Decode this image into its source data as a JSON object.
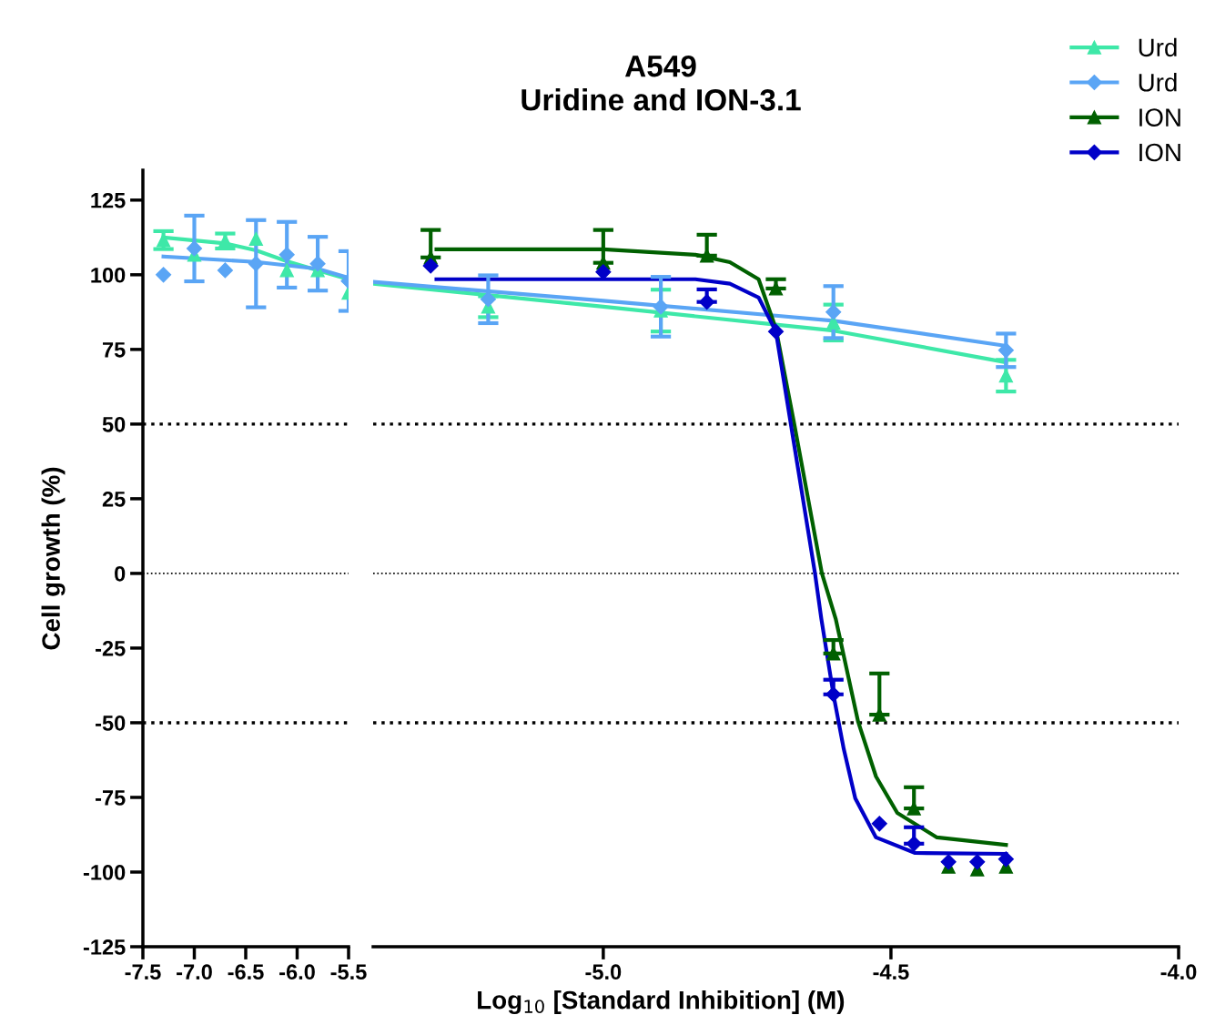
{
  "chart_data": [
    {
      "type": "scatter",
      "ylabel": "Cell growth (%)",
      "xlim": [
        -7.5,
        -5.5
      ],
      "xticks": [
        -7.5,
        {
          "value": -7.0,
          "label": "-7.0"
        },
        -6.5,
        {
          "value": -6.0,
          "label": "-6.0"
        },
        -5.5
      ],
      "ylim": [
        -125,
        135
      ],
      "yticks": [
        -125,
        -100,
        -75,
        -50,
        -25,
        0,
        25,
        50,
        75,
        100,
        125
      ],
      "grid": false,
      "legend": "top right",
      "ref_lines": [
        {
          "axis": "y",
          "value": 50,
          "line_style": "dotted",
          "color": "#000000"
        },
        {
          "axis": "y",
          "value": 0,
          "line_style": "dotted",
          "color": "#000000"
        },
        {
          "axis": "y",
          "value": -50,
          "line_style": "dotted",
          "color": "#000000"
        }
      ],
      "series": [
        {
          "type": "line",
          "color": "#3ee8a8",
          "x": [
            -7.3,
            -6.7,
            -6.4,
            -6.1,
            -5.8,
            -5.5
          ],
          "values": [
            112.5,
            110.5,
            108.2,
            104.5,
            101.5,
            98.5
          ]
        },
        {
          "type": "line",
          "color": "#5aa5f5",
          "x": [
            -7.3,
            -6.4,
            -5.8,
            -5.5
          ],
          "values": [
            106.1,
            104.3,
            102,
            99
          ]
        },
        {
          "name": "Urd",
          "type": "scatter",
          "marker": "triangle",
          "color": "#3ee8a8",
          "x": [
            -7.3,
            -7.0,
            -6.7,
            -6.4,
            -6.1,
            -5.8,
            -5.5
          ],
          "values": [
            111.6,
            106.7,
            111.3,
            112,
            101.5,
            101.5,
            94
          ],
          "errors": [
            3,
            null,
            2.5,
            null,
            null,
            null,
            null
          ]
        },
        {
          "name": "Urd",
          "type": "scatter",
          "marker": "diamond",
          "color": "#5aa5f5",
          "x": [
            -7.3,
            -7.0,
            -6.7,
            -6.4,
            -6.1,
            -5.8,
            -5.5
          ],
          "values": [
            100,
            108.8,
            101.5,
            103.7,
            106.7,
            103.7,
            97.9
          ],
          "errors": [
            null,
            11,
            null,
            14.6,
            11,
            9,
            10
          ]
        }
      ]
    },
    {
      "type": "scatter",
      "title": "A549\nUridine and ION-3.1",
      "xlabel": "Log$_{10}$ [Standard Inhibition] (M)",
      "xlim": [
        -5.4,
        -4.0
      ],
      "xticks": [
        {
          "value": -5.0,
          "label": "-5.0"
        },
        -4.5,
        {
          "value": -4.0,
          "label": "-4.0"
        }
      ],
      "ylim": [
        -125,
        125
      ],
      "yticks": [
        -125,
        -100,
        -75,
        -50,
        -25,
        0,
        25,
        50,
        75,
        100,
        125
      ],
      "tick_labels": "x",
      "grid": false,
      "legend": "top right",
      "ref_lines": [
        {
          "axis": "y",
          "value": 50,
          "line_style": "dotted",
          "color": "#000000"
        },
        {
          "axis": "y",
          "value": 0,
          "line_style": "dotted",
          "color": "#000000"
        },
        {
          "axis": "y",
          "value": -50,
          "line_style": "dotted",
          "color": "#000000"
        }
      ],
      "series": [
        {
          "type": "line",
          "color": "#3ee8a8",
          "x": [
            -5.4,
            -5.0,
            -4.7,
            -4.6,
            -4.3
          ],
          "values": [
            97.0,
            89.3,
            83.3,
            81.3,
            70.7
          ]
        },
        {
          "type": "line",
          "color": "#5aa5f5",
          "x": [
            -5.4,
            -5.0,
            -4.7,
            -4.6,
            -4.3
          ],
          "values": [
            97.6,
            91.3,
            86.3,
            84.6,
            76.2
          ]
        },
        {
          "type": "line",
          "color": "#006000",
          "x": [
            -5.29,
            -5.0,
            -4.84,
            -4.78,
            -4.73,
            -4.7,
            -4.668,
            -4.62,
            -4.596,
            -4.557,
            -4.526,
            -4.489,
            -4.42,
            -4.3
          ],
          "values": [
            108.5,
            108.5,
            106.7,
            104.2,
            98.5,
            82,
            50,
            0,
            -15.2,
            -49.7,
            -68,
            -80.2,
            -88.4,
            -90.9
          ]
        },
        {
          "type": "line",
          "color": "#0000c8",
          "x": [
            -5.29,
            -4.84,
            -4.78,
            -4.73,
            -4.7,
            -4.674,
            -4.632,
            -4.621,
            -4.6,
            -4.582,
            -4.562,
            -4.526,
            -4.458,
            -4.3
          ],
          "values": [
            98.5,
            98.5,
            97,
            92.4,
            81,
            50,
            0,
            -15.2,
            -40.5,
            -58.8,
            -75.3,
            -88.4,
            -93.6,
            -93.9
          ]
        },
        {
          "type": "scatter",
          "marker": "triangle",
          "color": "#3ee8a8",
          "x": [
            -5.2,
            -4.9,
            -4.6,
            -4.3
          ],
          "values": [
            89.3,
            88,
            84,
            66.2
          ],
          "errors": [
            3.5,
            7,
            6,
            5.3
          ]
        },
        {
          "type": "scatter",
          "marker": "diamond",
          "color": "#5aa5f5",
          "x": [
            -5.2,
            -4.9,
            -4.6,
            -4.3
          ],
          "values": [
            91.8,
            89.3,
            87.5,
            74.7
          ],
          "errors": [
            8,
            10,
            8.7,
            5.6
          ]
        },
        {
          "name": "ION",
          "type": "scatter",
          "marker": "triangle",
          "color": "#006000",
          "x": [
            -5.3,
            -5.0,
            -4.82,
            -4.7,
            -4.6,
            -4.52,
            -4.46,
            -4.4,
            -4.35,
            -4.3
          ],
          "values": [
            105.8,
            104,
            106.4,
            95.4,
            -26.8,
            -47.3,
            -78.7,
            -98.2,
            -99.1,
            -98.2
          ],
          "errors": [
            [
              105.8,
              115
            ],
            [
              104,
              115
            ],
            [
              106.4,
              113.4
            ],
            [
              95.4,
              98.5
            ],
            [
              -26.8,
              -22.3
            ],
            [
              -47.3,
              -33.5
            ],
            [
              -78.7,
              -71.6
            ],
            null,
            null,
            null
          ]
        },
        {
          "name": "ION",
          "type": "scatter",
          "marker": "diamond",
          "color": "#0000c8",
          "x": [
            -5.3,
            -5.0,
            -4.82,
            -4.7,
            -4.6,
            -4.52,
            -4.46,
            -4.4,
            -4.35,
            -4.3
          ],
          "values": [
            103,
            100.9,
            90.9,
            81,
            -40.5,
            -83.8,
            -90.5,
            -96.6,
            -96.6,
            -95.7
          ],
          "errors": [
            null,
            null,
            [
              90.9,
              95.1
            ],
            null,
            [
              -40.5,
              -35.6
            ],
            null,
            [
              -90.5,
              -85
            ],
            null,
            null,
            null
          ]
        }
      ]
    }
  ]
}
